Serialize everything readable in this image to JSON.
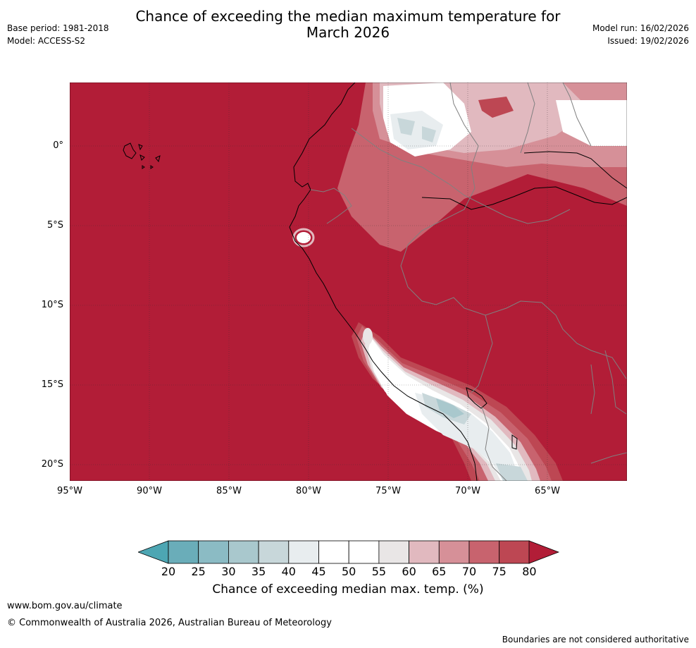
{
  "header": {
    "title_line1": "Chance of exceeding the median maximum temperature for",
    "title_line2": "March 2026",
    "base_period": "Base period: 1981-2018",
    "model": "Model: ACCESS-S2",
    "model_run": "Model run: 16/02/2026",
    "issued": "Issued: 19/02/2026"
  },
  "map": {
    "lat_ticks": [
      "0°",
      "5°S",
      "10°S",
      "15°S",
      "20°S"
    ],
    "lon_ticks": [
      "95°W",
      "90°W",
      "85°W",
      "80°W",
      "75°W",
      "70°W",
      "65°W"
    ],
    "extent": {
      "lon_min": -95,
      "lon_max": -60,
      "lat_min": -21,
      "lat_max": 4
    }
  },
  "colorbar": {
    "labels": [
      "20",
      "25",
      "30",
      "35",
      "40",
      "45",
      "50",
      "55",
      "60",
      "65",
      "70",
      "75",
      "80"
    ],
    "colors": [
      "#6aadb9",
      "#8bbbc4",
      "#a9c8cd",
      "#c8d7da",
      "#e8edef",
      "#ffffff",
      "#ffffff",
      "#e9e6e6",
      "#e1b9bf",
      "#d69098",
      "#c8636e",
      "#bd4753"
    ],
    "under_color": "#4da6b3",
    "over_color": "#b21d37",
    "title": "Chance of exceeding median max. temp. (%)"
  },
  "footer": {
    "url": "www.bom.gov.au/climate",
    "copyright": "© Commonwealth of Australia 2026, Australian Bureau of Meteorology",
    "disclaimer": "Boundaries are not considered authoritative"
  }
}
